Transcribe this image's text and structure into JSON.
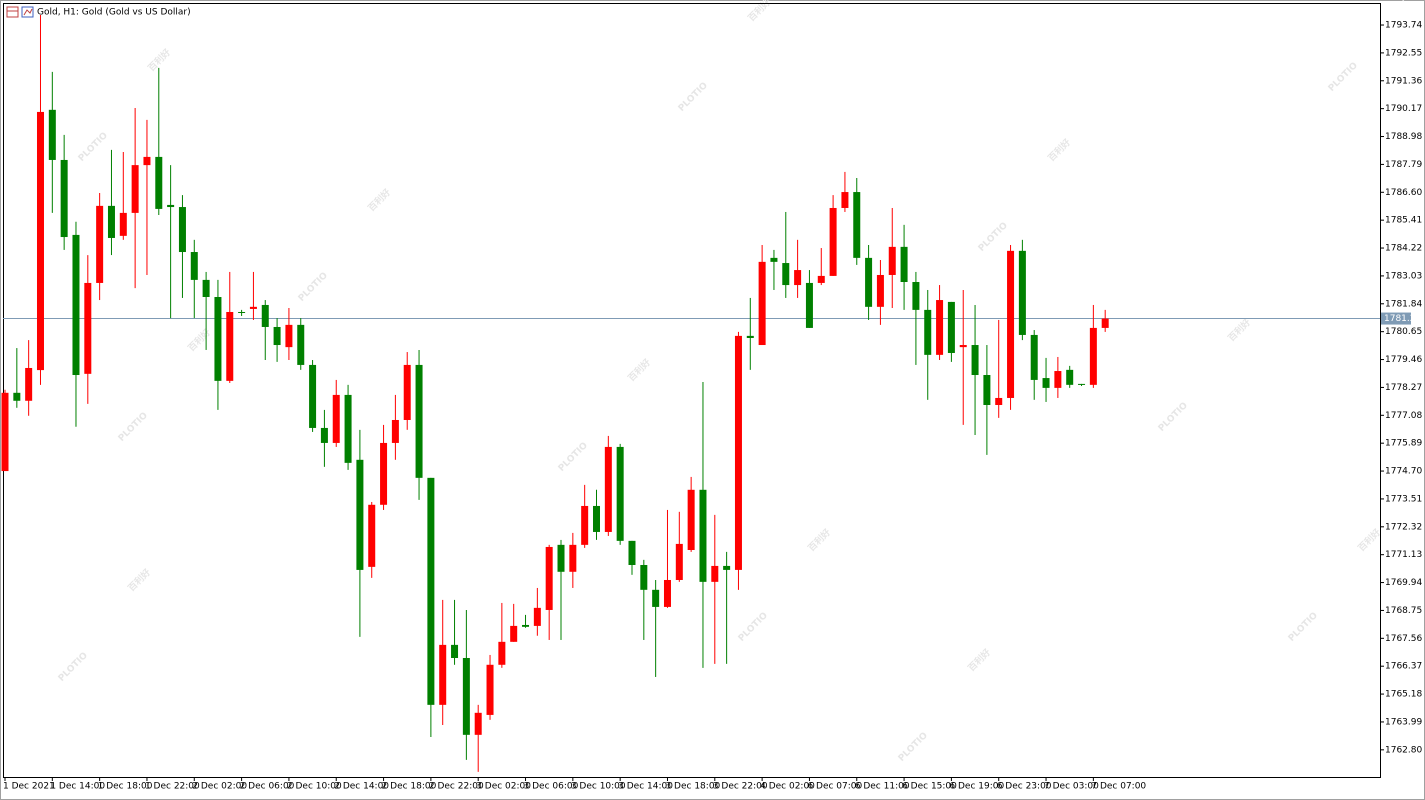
{
  "chart_data": {
    "type": "candlestick",
    "title": "Gold, H1:  Gold (Gold vs US Dollar)",
    "watermark": {
      "logo": "PLOTIO",
      "text": "百利好"
    },
    "up_color": "#ff0000",
    "down_color": "#008000",
    "price_line_color": "#7f9bb5",
    "last_price": 1781.21,
    "ylim": [
      1761.64,
      1794.68
    ],
    "yticks": [
      1793.74,
      1792.55,
      1791.36,
      1790.17,
      1788.98,
      1787.79,
      {
        "value": 1786.6,
        "label": "1786.60"
      },
      1785.41,
      1784.22,
      1783.03,
      1781.84,
      1780.65,
      1779.46,
      1778.27,
      1777.08,
      1775.89,
      {
        "value": 1774.7,
        "label": "1774.70"
      },
      1773.51,
      1772.32,
      1771.13,
      1769.94,
      1768.75,
      1767.56,
      1766.37,
      1765.18,
      1763.99,
      {
        "value": 1762.8,
        "label": "1762.80"
      }
    ],
    "categories": [
      "1 Dec 2021",
      null,
      null,
      null,
      "1 Dec 14:00",
      null,
      null,
      null,
      "1 Dec 18:00",
      null,
      null,
      null,
      "1 Dec 22:00",
      null,
      null,
      null,
      "2 Dec 02:00",
      null,
      null,
      null,
      "2 Dec 06:00",
      null,
      null,
      null,
      "2 Dec 10:00",
      null,
      null,
      null,
      "2 Dec 14:00",
      null,
      null,
      null,
      "2 Dec 18:00",
      null,
      null,
      null,
      "2 Dec 22:00",
      null,
      null,
      null,
      "3 Dec 02:00",
      null,
      null,
      null,
      "3 Dec 06:00",
      null,
      null,
      null,
      "3 Dec 10:00",
      null,
      null,
      null,
      "3 Dec 14:00",
      null,
      null,
      null,
      "3 Dec 18:00",
      null,
      null,
      null,
      "3 Dec 22:00",
      null,
      null,
      null,
      "4 Dec 02:00",
      null,
      null,
      null,
      "6 Dec 07:00",
      null,
      null,
      null,
      "6 Dec 11:00",
      null,
      null,
      null,
      "6 Dec 15:00",
      null,
      null,
      null,
      "6 Dec 19:00",
      null,
      null,
      null,
      "6 Dec 23:00",
      null,
      null,
      null,
      "7 Dec 03:00",
      null,
      null,
      null,
      "7 Dec 07:00",
      null
    ],
    "open": [
      1774.7,
      1778.04,
      1777.7,
      1779.01,
      1790.12,
      1787.98,
      1784.78,
      1778.85,
      1782.73,
      1786.02,
      1784.74,
      1785.72,
      1787.76,
      1788.11,
      1786.06,
      1785.97,
      1784.05,
      1782.86,
      1782.13,
      1778.55,
      1781.49,
      1781.62,
      1781.79,
      1780.85,
      1779.99,
      1780.94,
      1779.23,
      1776.54,
      1775.9,
      1777.95,
      1775.18,
      1770.61,
      1773.26,
      1775.9,
      1776.88,
      1779.23,
      1774.41,
      1764.72,
      1767.28,
      1766.72,
      1763.44,
      1764.29,
      1766.43,
      1767.41,
      1768.13,
      1768.09,
      1768.77,
      1771.55,
      1770.4,
      1771.55,
      1773.21,
      1772.1,
      1775.73,
      1771.72,
      1770.69,
      1769.63,
      1768.9,
      1770.05,
      1771.33,
      1773.9,
      1769.97,
      1770.65,
      1770.48,
      1780.47,
      1780.08,
      1783.8,
      1783.58,
      1782.64,
      1782.73,
      1782.73,
      1783.03,
      1785.93,
      1786.61,
      1783.8,
      1781.71,
      1783.07,
      1784.27,
      1782.77,
      1781.58,
      1779.66,
      1781.92,
      1779.99,
      1780.08,
      1778.8,
      1777.52,
      1777.82,
      1784.1,
      1780.51,
      1778.67,
      1778.25,
      1779.02,
      1778.42,
      1778.38,
      1780.81
    ],
    "high": [
      1778.17,
      1779.95,
      1780.29,
      1794.17,
      1791.74,
      1789.05,
      1785.34,
      1783.92,
      1786.57,
      1788.41,
      1788.32,
      1790.2,
      1789.69,
      1791.91,
      1787.76,
      1786.48,
      1784.57,
      1783.2,
      1782.86,
      1783.2,
      1781.58,
      1783.2,
      1782.0,
      1781.23,
      1781.66,
      1781.23,
      1779.44,
      1777.31,
      1778.59,
      1778.38,
      1776.46,
      1773.38,
      1776.67,
      1777.95,
      1779.78,
      1779.87,
      1774.41,
      1769.2,
      1769.2,
      1768.77,
      1764.72,
      1766.85,
      1769.07,
      1769.03,
      1768.56,
      1769.71,
      1771.55,
      1771.76,
      1772.06,
      1774.11,
      1773.9,
      1776.2,
      1775.86,
      1771.72,
      1770.91,
      1770.05,
      1773.04,
      1772.96,
      1774.45,
      1778.5,
      1772.83,
      1771.25,
      1780.64,
      1782.09,
      1784.35,
      1784.14,
      1785.76,
      1784.57,
      1783.28,
      1784.22,
      1786.48,
      1787.47,
      1787.21,
      1784.35,
      1783.71,
      1785.93,
      1785.21,
      1783.2,
      1782.43,
      1782.64,
      1781.92,
      1782.43,
      1781.79,
      1780.08,
      1781.15,
      1784.35,
      1784.57,
      1780.72,
      1779.53,
      1779.57,
      1779.19,
      1778.42,
      1781.79,
      1781.58
    ],
    "low": [
      1774.7,
      1777.4,
      1777.06,
      1778.38,
      1785.72,
      1784.14,
      1776.59,
      1777.57,
      1782.0,
      1783.92,
      1784.57,
      1782.51,
      1783.07,
      1785.63,
      1781.23,
      1782.09,
      1781.23,
      1779.87,
      1777.31,
      1778.46,
      1781.32,
      1781.15,
      1779.44,
      1779.36,
      1779.44,
      1779.02,
      1776.37,
      1774.88,
      1775.73,
      1774.75,
      1767.62,
      1770.14,
      1773.04,
      1775.18,
      1776.46,
      1773.47,
      1763.35,
      1763.86,
      1766.43,
      1762.37,
      1761.86,
      1764.08,
      1766.3,
      1767.41,
      1768.01,
      1767.67,
      1767.49,
      1767.49,
      1769.71,
      1771.42,
      1771.76,
      1771.93,
      1771.55,
      1770.27,
      1767.49,
      1765.91,
      1768.86,
      1769.97,
      1771.25,
      1766.3,
      1766.47,
      1766.47,
      1769.63,
      1779.02,
      1780.08,
      1782.43,
      1782.09,
      1782.09,
      1780.81,
      1782.64,
      1783.03,
      1785.76,
      1783.5,
      1781.15,
      1780.94,
      1781.66,
      1781.58,
      1779.23,
      1777.74,
      1779.44,
      1779.36,
      1776.67,
      1776.24,
      1775.39,
      1776.97,
      1777.31,
      1780.29,
      1777.74,
      1777.65,
      1777.82,
      1778.25,
      1778.33,
      1778.25,
      1780.64
    ],
    "close": [
      1778.04,
      1777.7,
      1779.1,
      1790.03,
      1787.98,
      1784.69,
      1778.8,
      1782.73,
      1786.02,
      1784.65,
      1785.72,
      1787.76,
      1788.11,
      1785.89,
      1785.97,
      1784.05,
      1782.86,
      1782.13,
      1778.55,
      1781.49,
      1781.45,
      1781.71,
      1780.85,
      1780.08,
      1780.94,
      1779.23,
      1776.54,
      1775.9,
      1777.95,
      1775.05,
      1770.48,
      1773.26,
      1775.9,
      1776.88,
      1779.23,
      1774.41,
      1764.72,
      1767.28,
      1766.72,
      1763.44,
      1764.38,
      1766.43,
      1767.41,
      1768.09,
      1768.05,
      1768.86,
      1771.46,
      1770.4,
      1771.55,
      1773.21,
      1772.1,
      1775.73,
      1771.72,
      1770.69,
      1769.63,
      1768.9,
      1770.05,
      1771.59,
      1773.9,
      1769.97,
      1770.65,
      1770.48,
      1780.47,
      1780.38,
      1783.63,
      1783.63,
      1782.64,
      1783.28,
      1780.81,
      1783.03,
      1785.93,
      1786.61,
      1783.8,
      1781.71,
      1783.07,
      1784.27,
      1782.77,
      1781.58,
      1779.66,
      1782.0,
      1779.74,
      1780.08,
      1778.8,
      1777.52,
      1777.82,
      1784.1,
      1780.51,
      1778.59,
      1778.25,
      1778.97,
      1778.38,
      1778.38,
      1780.81,
      1781.21
    ]
  }
}
